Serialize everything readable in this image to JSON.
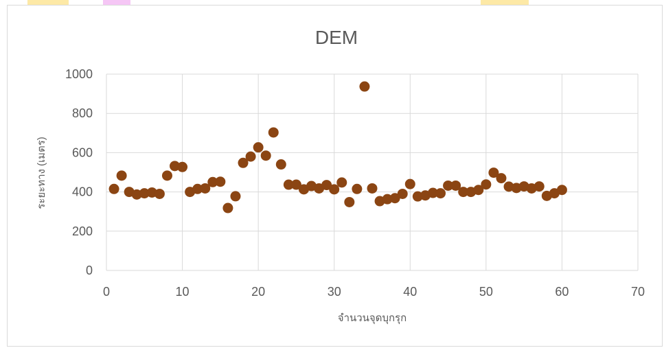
{
  "chart_data": {
    "type": "scatter",
    "title": "DEM",
    "xlabel": "จำนวนจุดบุกรุก",
    "ylabel": "ระยะทาง (เมตร)",
    "xlim": [
      0,
      70
    ],
    "ylim": [
      0,
      1000
    ],
    "x_ticks": [
      0,
      10,
      20,
      30,
      40,
      50,
      60,
      70
    ],
    "y_ticks": [
      0,
      200,
      400,
      600,
      800,
      1000
    ],
    "grid": true,
    "legend": "none",
    "marker_color": "#8B4513",
    "series": [
      {
        "x": [
          1,
          2,
          3,
          4,
          5,
          6,
          7,
          8,
          9,
          10,
          11,
          12,
          13,
          14,
          15,
          16,
          17,
          18,
          19,
          20,
          21,
          22,
          23,
          24,
          25,
          26,
          27,
          28,
          29,
          30,
          31,
          32,
          33,
          34,
          35,
          36,
          37,
          38,
          39,
          40,
          41,
          42,
          43,
          44,
          45,
          46,
          47,
          48,
          49,
          50,
          51,
          52,
          53,
          54,
          55,
          56,
          57,
          58,
          59,
          60
        ],
        "y": [
          415,
          483,
          400,
          387,
          393,
          397,
          390,
          483,
          532,
          527,
          400,
          415,
          418,
          450,
          452,
          318,
          378,
          548,
          580,
          627,
          585,
          703,
          540,
          437,
          437,
          413,
          430,
          418,
          435,
          413,
          448,
          348,
          415,
          937,
          418,
          353,
          363,
          368,
          390,
          440,
          377,
          382,
          395,
          393,
          432,
          432,
          400,
          400,
          410,
          438,
          498,
          470,
          427,
          420,
          428,
          418,
          428,
          380,
          393,
          410
        ]
      }
    ]
  }
}
